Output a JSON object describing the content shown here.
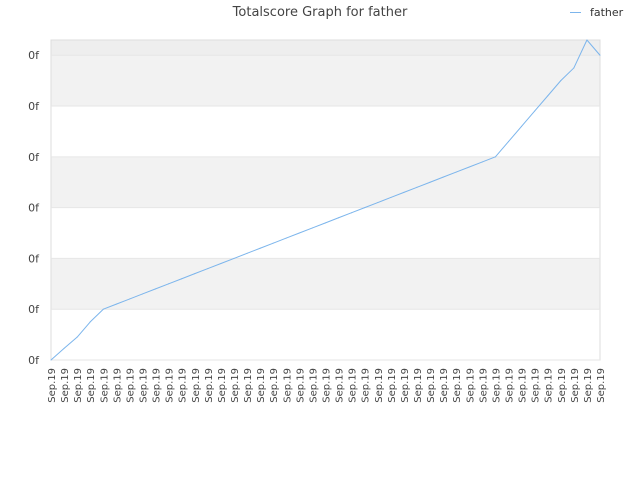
{
  "chart_data": {
    "type": "line",
    "title": "Totalscore Graph for father",
    "xlabel": "",
    "ylabel": "",
    "y_tick_labels": [
      "0f",
      "0f",
      "0f",
      "0f",
      "0f",
      "0f",
      "0f"
    ],
    "x": [
      "Sep.19",
      "Sep.19",
      "Sep.19",
      "Sep.19",
      "Sep.19",
      "Sep.19",
      "Sep.19",
      "Sep.19",
      "Sep.19",
      "Sep.19",
      "Sep.19",
      "Sep.19",
      "Sep.19",
      "Sep.19",
      "Sep.19",
      "Sep.19",
      "Sep.19",
      "Sep.19",
      "Sep.19",
      "Sep.19",
      "Sep.19",
      "Sep.19",
      "Sep.19",
      "Sep.19",
      "Sep.19",
      "Sep.19",
      "Sep.19",
      "Sep.19",
      "Sep.19",
      "Sep.19",
      "Sep.19",
      "Sep.19",
      "Sep.19",
      "Sep.19",
      "Sep.19",
      "Sep.19",
      "Sep.19",
      "Sep.19",
      "Sep.19",
      "Sep.19",
      "Sep.19",
      "Sep.19",
      "Sep.19"
    ],
    "series": [
      {
        "name": "father",
        "color": "#7cb5ec",
        "values": [
          0,
          0.23,
          0.45,
          0.75,
          1.0,
          1.1,
          1.2,
          1.3,
          1.4,
          1.5,
          1.6,
          1.7,
          1.8,
          1.9,
          2.0,
          2.1,
          2.2,
          2.3,
          2.4,
          2.5,
          2.6,
          2.7,
          2.8,
          2.9,
          3.0,
          3.1,
          3.2,
          3.3,
          3.4,
          3.5,
          3.6,
          3.7,
          3.8,
          3.9,
          4.0,
          4.3,
          4.6,
          4.9,
          5.2,
          5.5,
          5.75,
          6.3,
          6.0
        ]
      }
    ],
    "ylim": [
      0,
      6.3
    ],
    "grid": true,
    "alternate_bands": true,
    "legend_position": "top-right"
  }
}
